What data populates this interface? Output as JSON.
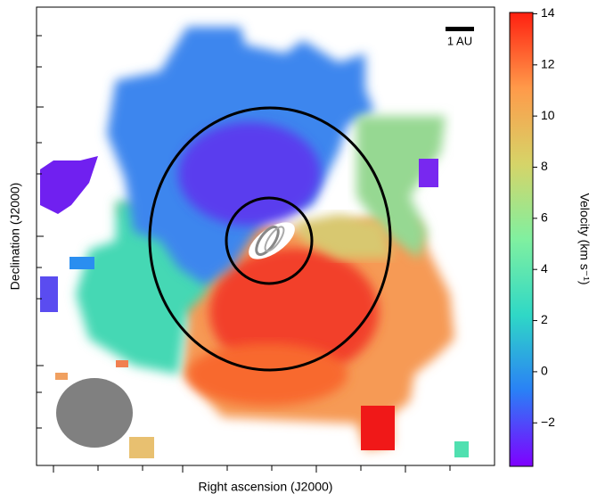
{
  "chart_data": {
    "type": "velocity-map",
    "x_label": "Right ascension (J2000)",
    "y_label": "Declination (J2000)",
    "colorbar_label": "Velocity (km s⁻¹)",
    "scale_bar_label": "1 AU",
    "colorbar_lim": [
      -3.7,
      14.05
    ],
    "colorbar_ticks": [
      {
        "value": -2,
        "label": "−2"
      },
      0,
      2,
      4,
      6,
      8,
      10,
      12,
      14
    ],
    "colormap": [
      "#7f00ff",
      "#2a80f6",
      "#2fd8c6",
      "#80f0a0",
      "#d6d468",
      "#ff9a4a",
      "#ff2010"
    ]
  }
}
